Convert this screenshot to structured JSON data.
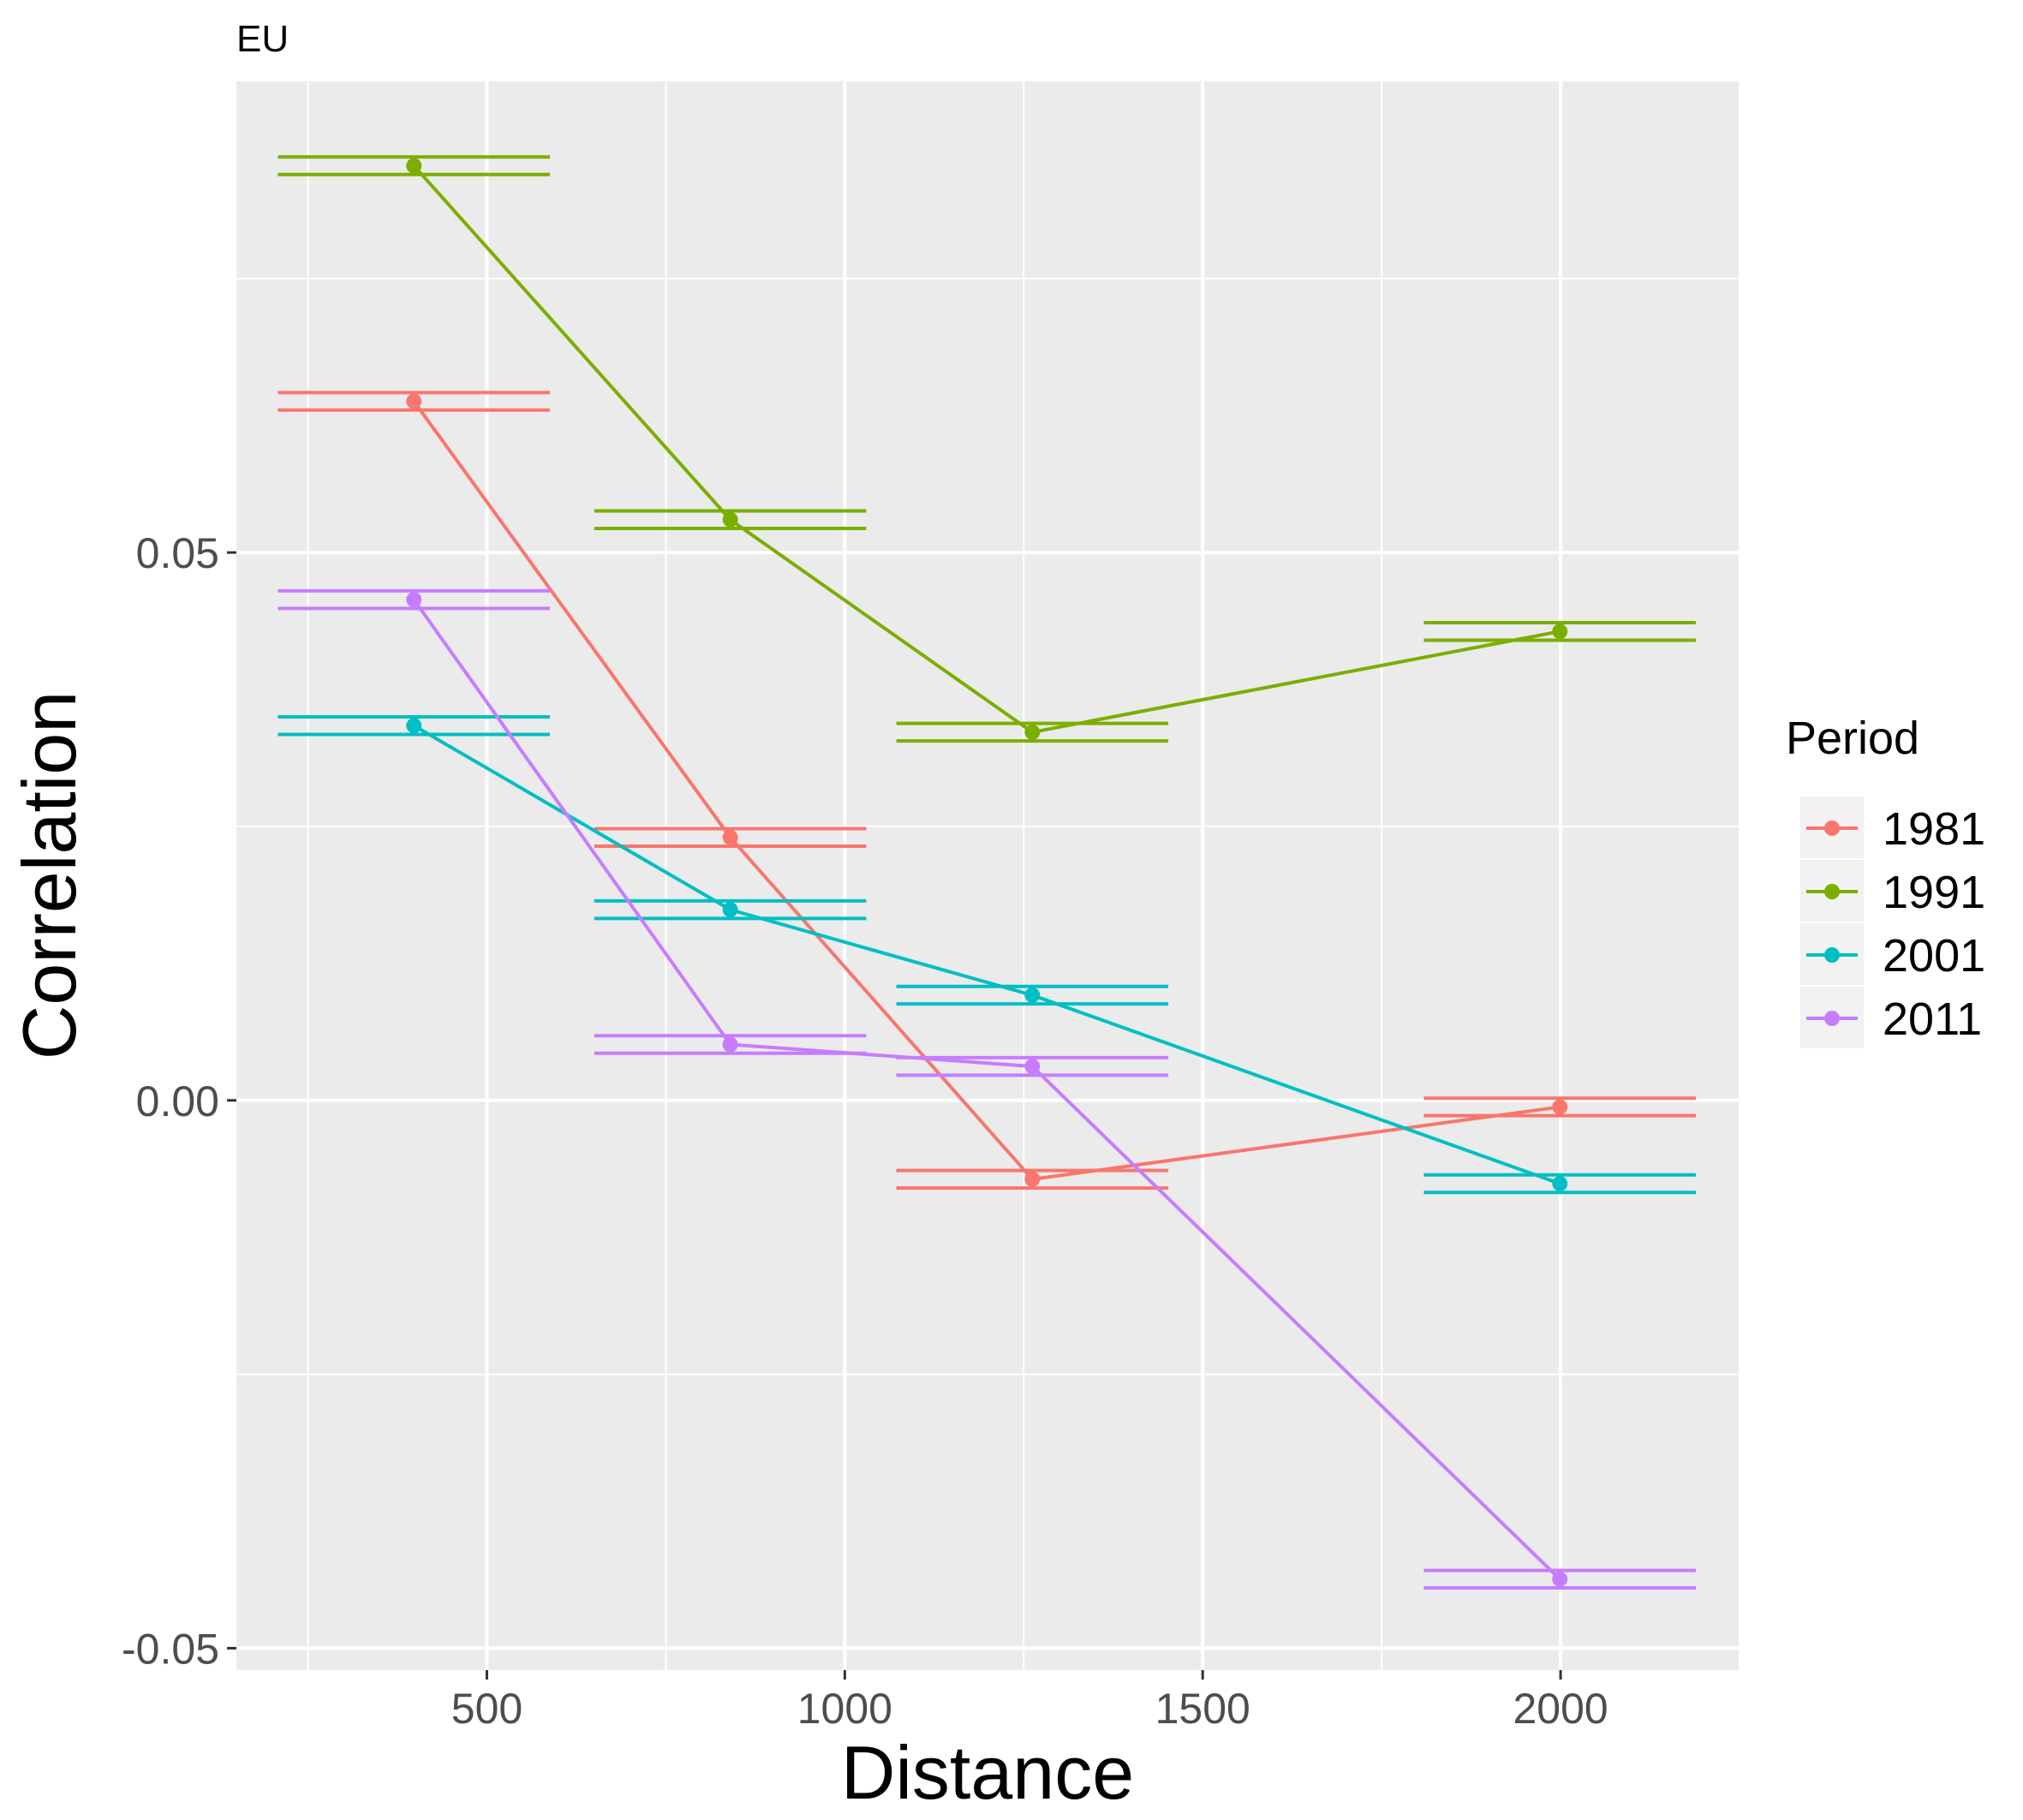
{
  "chart_data": {
    "type": "line",
    "title": "EU",
    "xlabel": "Distance",
    "ylabel": "Correlation",
    "xlim": [
      150,
      2250
    ],
    "ylim": [
      -0.052,
      0.093
    ],
    "x_ticks": [
      500,
      1000,
      1500,
      2000
    ],
    "x_tick_labels": [
      "500",
      "1000",
      "1500",
      "2000"
    ],
    "y_ticks": [
      -0.05,
      0.0,
      0.05
    ],
    "y_tick_labels": [
      "-0.05",
      "0.00",
      "0.05"
    ],
    "grid": true,
    "legend": {
      "title": "Period",
      "position": "right"
    },
    "errorbar_halfwidth": 190,
    "series": [
      {
        "name": "1981",
        "color": "#F8766D",
        "x": [
          398,
          840,
          1262,
          1999
        ],
        "y": [
          0.0638,
          0.024,
          -0.0072,
          -0.0006
        ],
        "lower": [
          0.063,
          0.0232,
          -0.008,
          -0.0014
        ],
        "upper": [
          0.0646,
          0.0248,
          -0.0064,
          0.0002
        ]
      },
      {
        "name": "1991",
        "color": "#7CAE00",
        "x": [
          398,
          840,
          1262,
          1999
        ],
        "y": [
          0.0853,
          0.053,
          0.0336,
          0.0428
        ],
        "lower": [
          0.0845,
          0.0522,
          0.0328,
          0.042
        ],
        "upper": [
          0.0861,
          0.0538,
          0.0344,
          0.0436
        ]
      },
      {
        "name": "2001",
        "color": "#00BFC4",
        "x": [
          398,
          840,
          1262,
          1999
        ],
        "y": [
          0.0342,
          0.0174,
          0.0096,
          -0.0076
        ],
        "lower": [
          0.0334,
          0.0166,
          0.0088,
          -0.0084
        ],
        "upper": [
          0.035,
          0.0182,
          0.0104,
          -0.0068
        ]
      },
      {
        "name": "2011",
        "color": "#C77CFF",
        "x": [
          398,
          840,
          1262,
          1999
        ],
        "y": [
          0.0457,
          0.0051,
          0.0031,
          -0.0437
        ],
        "lower": [
          0.0449,
          0.0043,
          0.0023,
          -0.0445
        ],
        "upper": [
          0.0465,
          0.0059,
          0.0039,
          -0.0429
        ]
      }
    ]
  }
}
